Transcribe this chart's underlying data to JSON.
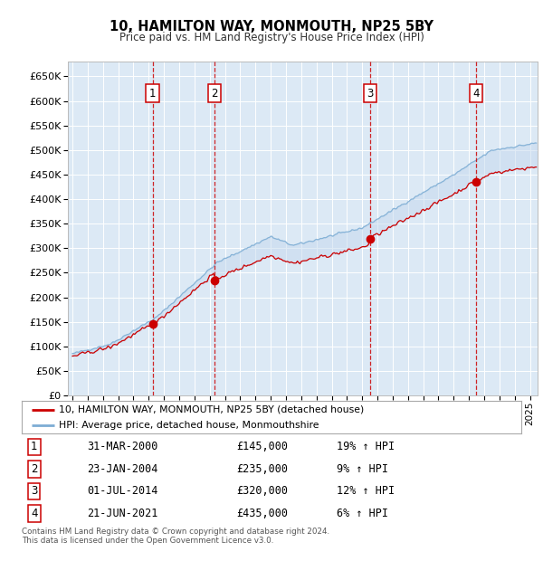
{
  "title": "10, HAMILTON WAY, MONMOUTH, NP25 5BY",
  "subtitle": "Price paid vs. HM Land Registry's House Price Index (HPI)",
  "ylim": [
    0,
    680000
  ],
  "yticks": [
    0,
    50000,
    100000,
    150000,
    200000,
    250000,
    300000,
    350000,
    400000,
    450000,
    500000,
    550000,
    600000,
    650000
  ],
  "xlim_start": 1994.7,
  "xlim_end": 2025.5,
  "plot_bg_color": "#dce9f5",
  "grid_color": "#ffffff",
  "red_line_color": "#cc0000",
  "blue_line_color": "#7dadd4",
  "fill_color": "#c5d9ee",
  "vline_color": "#cc0000",
  "transactions": [
    {
      "year": 2000.25,
      "price": 145000,
      "label": "1"
    },
    {
      "year": 2004.32,
      "price": 235000,
      "label": "2"
    },
    {
      "year": 2014.5,
      "price": 320000,
      "label": "3"
    },
    {
      "year": 2021.47,
      "price": 435000,
      "label": "4"
    }
  ],
  "legend_line1": "10, HAMILTON WAY, MONMOUTH, NP25 5BY (detached house)",
  "legend_line2": "HPI: Average price, detached house, Monmouthshire",
  "footer": "Contains HM Land Registry data © Crown copyright and database right 2024.\nThis data is licensed under the Open Government Licence v3.0.",
  "table_rows": [
    [
      "1",
      "31-MAR-2000",
      "£145,000",
      "19% ↑ HPI"
    ],
    [
      "2",
      "23-JAN-2004",
      "£235,000",
      "9% ↑ HPI"
    ],
    [
      "3",
      "01-JUL-2014",
      "£320,000",
      "12% ↑ HPI"
    ],
    [
      "4",
      "21-JUN-2021",
      "£435,000",
      "6% ↑ HPI"
    ]
  ]
}
